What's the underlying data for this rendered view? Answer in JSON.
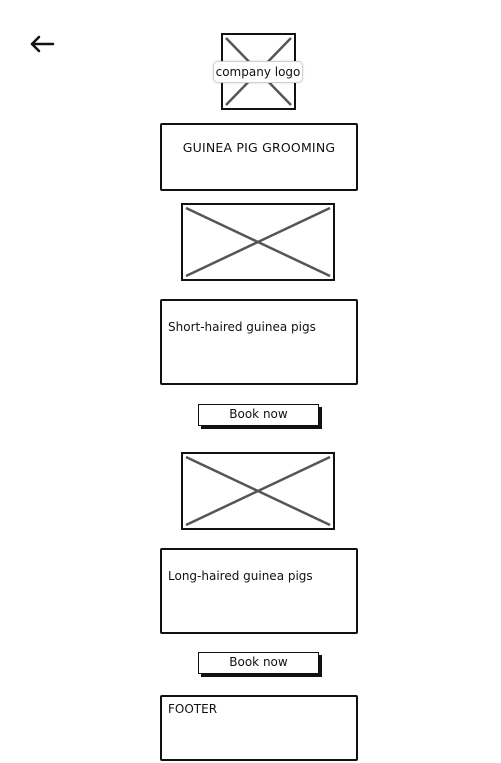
{
  "nav": {
    "back_icon": "arrow-left-icon"
  },
  "logo": {
    "label": "company logo",
    "icon": "image-placeholder-icon"
  },
  "header": {
    "title": "GUINEA PIG GROOMING"
  },
  "services": [
    {
      "image_icon": "image-placeholder-icon",
      "description": "Short-haired guinea pigs",
      "button_label": "Book now"
    },
    {
      "image_icon": "image-placeholder-icon",
      "description": "Long-haired guinea pigs",
      "button_label": "Book now"
    }
  ],
  "footer": {
    "text": "FOOTER"
  },
  "colors": {
    "stroke": "#111111",
    "placeholder_cross": "#555555",
    "background": "#ffffff"
  }
}
